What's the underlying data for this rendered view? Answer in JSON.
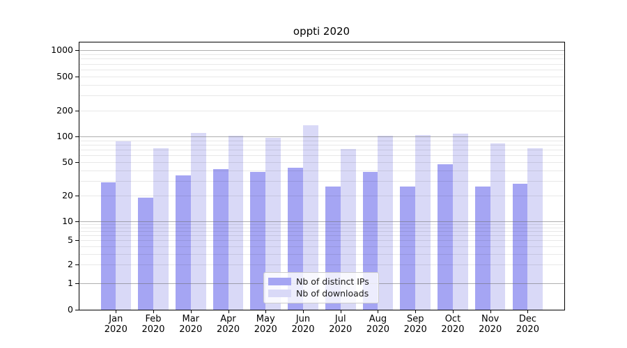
{
  "title": "oppti 2020",
  "chart_data": {
    "type": "bar",
    "title": "oppti 2020",
    "categories": [
      "Jan",
      "Feb",
      "Mar",
      "Apr",
      "May",
      "Jun",
      "Jul",
      "Aug",
      "Sep",
      "Oct",
      "Nov",
      "Dec"
    ],
    "category_year": "2020",
    "series": [
      {
        "name": "Nb of distinct IPs",
        "color": "#a5a5f3",
        "values": [
          29,
          19,
          35,
          41,
          38,
          43,
          26,
          38,
          26,
          47,
          26,
          28
        ]
      },
      {
        "name": "Nb of downloads",
        "color": "#d9d9f7",
        "values": [
          88,
          72,
          109,
          102,
          96,
          134,
          71,
          102,
          104,
          108,
          83,
          73
        ]
      }
    ],
    "xlabel": "",
    "ylabel": "",
    "yscale": "symlog",
    "y_ticks": [
      0,
      1,
      2,
      5,
      10,
      20,
      50,
      100,
      200,
      500,
      1000
    ],
    "ylim": [
      0,
      1000
    ],
    "grid": "on",
    "legend_position": "lower-center"
  },
  "colors": {
    "bar_distinct_ips": "#a5a5f3",
    "bar_downloads": "#d9d9f7",
    "major_grid": "#b5b5b5",
    "minor_grid": "#ebebeb",
    "spine": "#000000",
    "background": "#ffffff",
    "legend_border": "#cccccc",
    "text": "#000000"
  }
}
